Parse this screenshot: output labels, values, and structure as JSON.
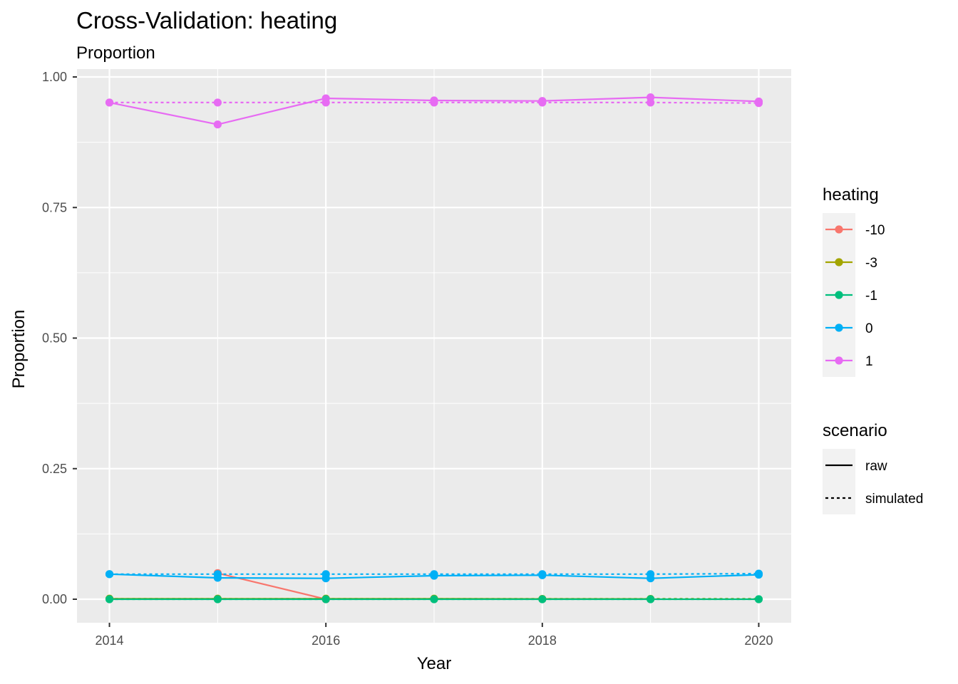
{
  "title": "Cross-Validation: heating",
  "subtitle": "Proportion",
  "chart_data": {
    "type": "line",
    "title": "Cross-Validation: heating",
    "subtitle": "Proportion",
    "xlabel": "Year",
    "ylabel": "Proportion",
    "x": [
      2014,
      2015,
      2016,
      2017,
      2018,
      2019,
      2020
    ],
    "xlim": [
      2013.7,
      2020.3
    ],
    "ylim": [
      -0.045,
      1.015
    ],
    "x_ticks": [
      2014,
      2016,
      2018,
      2020
    ],
    "x_tick_labels": [
      "2014",
      "2016",
      "2018",
      "2020"
    ],
    "y_ticks": [
      0,
      0.25,
      0.5,
      0.75,
      1.0
    ],
    "y_tick_labels": [
      "0.00",
      "0.25",
      "0.50",
      "0.75",
      "1.00"
    ],
    "grid": true,
    "legend_position": "right",
    "color_legend": {
      "title": "heating",
      "items": [
        {
          "label": "-10",
          "color": "#F8766D"
        },
        {
          "label": "-3",
          "color": "#A3A500"
        },
        {
          "label": "-1",
          "color": "#00BF7D"
        },
        {
          "label": "0",
          "color": "#00B0F6"
        },
        {
          "label": "1",
          "color": "#E76BF3"
        }
      ]
    },
    "linetype_legend": {
      "title": "scenario",
      "items": [
        {
          "label": "raw",
          "dash": "solid"
        },
        {
          "label": "simulated",
          "dash": "dotted"
        }
      ]
    },
    "series": [
      {
        "heating": "-10",
        "scenario": "raw",
        "color": "#F8766D",
        "dash": "solid",
        "points": true,
        "x": [
          2015,
          2016
        ],
        "values": [
          0.05,
          0.0
        ]
      },
      {
        "heating": "-3",
        "scenario": "raw",
        "color": "#A3A500",
        "dash": "solid",
        "points": true,
        "x": [
          2014,
          2015,
          2016,
          2017,
          2018,
          2019
        ],
        "values": [
          0.001,
          0.001,
          0.001,
          0.001,
          0.0005,
          0.0005
        ]
      },
      {
        "heating": "-3",
        "scenario": "simulated",
        "color": "#A3A500",
        "dash": "dotted",
        "points": false,
        "x": [
          2014,
          2015,
          2016,
          2017,
          2018,
          2019,
          2020
        ],
        "values": [
          0.001,
          0.001,
          0.001,
          0.001,
          0.001,
          0.001,
          0.001
        ]
      },
      {
        "heating": "-1",
        "scenario": "raw",
        "color": "#00BF7D",
        "dash": "solid",
        "points": true,
        "x": [
          2014,
          2015,
          2016,
          2017,
          2018,
          2019,
          2020
        ],
        "values": [
          0.0,
          0.0,
          0.0,
          0.0,
          0.0,
          0.0,
          0.0
        ]
      },
      {
        "heating": "-1",
        "scenario": "simulated",
        "color": "#00BF7D",
        "dash": "dotted",
        "points": false,
        "x": [
          2014,
          2015,
          2016,
          2017,
          2018,
          2019,
          2020
        ],
        "values": [
          0.0,
          0.0,
          0.0,
          0.0,
          0.0,
          0.0,
          0.0
        ]
      },
      {
        "heating": "0",
        "scenario": "raw",
        "color": "#00B0F6",
        "dash": "solid",
        "points": true,
        "x": [
          2014,
          2015,
          2016,
          2017,
          2018,
          2019,
          2020
        ],
        "values": [
          0.048,
          0.041,
          0.04,
          0.045,
          0.046,
          0.04,
          0.047
        ]
      },
      {
        "heating": "0",
        "scenario": "simulated",
        "color": "#00B0F6",
        "dash": "dotted",
        "points": true,
        "x": [
          2014,
          2015,
          2016,
          2017,
          2018,
          2019,
          2020
        ],
        "values": [
          0.048,
          0.048,
          0.048,
          0.048,
          0.048,
          0.048,
          0.049
        ]
      },
      {
        "heating": "1",
        "scenario": "raw",
        "color": "#E76BF3",
        "dash": "solid",
        "points": true,
        "x": [
          2014,
          2015,
          2016,
          2017,
          2018,
          2019,
          2020
        ],
        "values": [
          0.951,
          0.909,
          0.959,
          0.955,
          0.954,
          0.961,
          0.953
        ]
      },
      {
        "heating": "1",
        "scenario": "simulated",
        "color": "#E76BF3",
        "dash": "dotted",
        "points": true,
        "x": [
          2014,
          2015,
          2016,
          2017,
          2018,
          2019,
          2020
        ],
        "values": [
          0.951,
          0.951,
          0.951,
          0.951,
          0.951,
          0.951,
          0.95
        ]
      }
    ]
  }
}
